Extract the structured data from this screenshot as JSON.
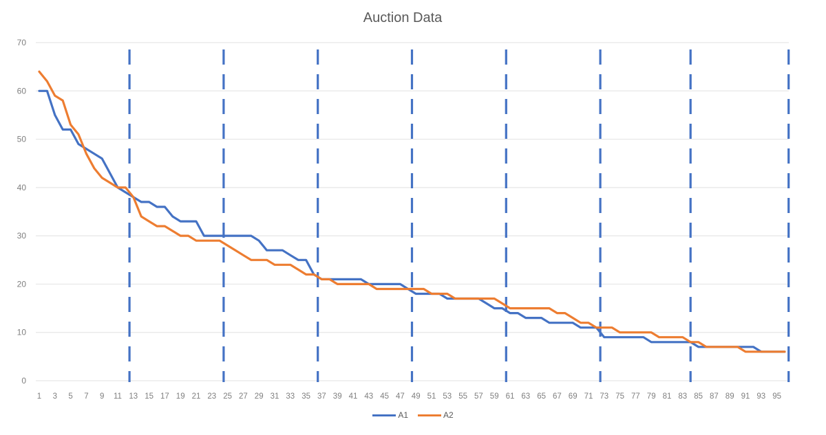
{
  "chart_data": {
    "type": "line",
    "title": "Auction Data",
    "xlabel": "",
    "ylabel": "",
    "ylim": [
      0,
      70
    ],
    "yticks": [
      0,
      10,
      20,
      30,
      40,
      50,
      60,
      70
    ],
    "x": [
      1,
      2,
      3,
      4,
      5,
      6,
      7,
      8,
      9,
      10,
      11,
      12,
      13,
      14,
      15,
      16,
      17,
      18,
      19,
      20,
      21,
      22,
      23,
      24,
      25,
      26,
      27,
      28,
      29,
      30,
      31,
      32,
      33,
      34,
      35,
      36,
      37,
      38,
      39,
      40,
      41,
      42,
      43,
      44,
      45,
      46,
      47,
      48,
      49,
      50,
      51,
      52,
      53,
      54,
      55,
      56,
      57,
      58,
      59,
      60,
      61,
      62,
      63,
      64,
      65,
      66,
      67,
      68,
      69,
      70,
      71,
      72,
      73,
      74,
      75,
      76,
      77,
      78,
      79,
      80,
      81,
      82,
      83,
      84,
      85,
      86,
      87,
      88,
      89,
      90,
      91,
      92,
      93,
      94,
      95,
      96
    ],
    "xtick_labels": [
      "1",
      "3",
      "5",
      "7",
      "9",
      "11",
      "13",
      "15",
      "17",
      "19",
      "21",
      "23",
      "25",
      "27",
      "29",
      "31",
      "33",
      "35",
      "37",
      "39",
      "41",
      "43",
      "45",
      "47",
      "49",
      "51",
      "53",
      "55",
      "57",
      "59",
      "61",
      "63",
      "65",
      "67",
      "69",
      "71",
      "73",
      "75",
      "77",
      "79",
      "81",
      "83",
      "85",
      "87",
      "89",
      "91",
      "93",
      "95"
    ],
    "grid": true,
    "legend_position": "bottom",
    "series": [
      {
        "name": "A1",
        "color": "#4472c4",
        "values": [
          60,
          60,
          55,
          52,
          52,
          49,
          48,
          47,
          46,
          43,
          40,
          39,
          38,
          37,
          37,
          36,
          36,
          34,
          33,
          33,
          33,
          30,
          30,
          30,
          30,
          30,
          30,
          30,
          29,
          27,
          27,
          27,
          26,
          25,
          25,
          22,
          21,
          21,
          21,
          21,
          21,
          21,
          20,
          20,
          20,
          20,
          20,
          19,
          18,
          18,
          18,
          18,
          17,
          17,
          17,
          17,
          17,
          16,
          15,
          15,
          14,
          14,
          13,
          13,
          13,
          12,
          12,
          12,
          12,
          11,
          11,
          11,
          9,
          9,
          9,
          9,
          9,
          9,
          8,
          8,
          8,
          8,
          8,
          8,
          7,
          7,
          7,
          7,
          7,
          7,
          7,
          7,
          6,
          6,
          6,
          6
        ]
      },
      {
        "name": "A2",
        "color": "#ed7d31",
        "values": [
          64,
          62,
          59,
          58,
          53,
          51,
          47,
          44,
          42,
          41,
          40,
          40,
          38,
          34,
          33,
          32,
          32,
          31,
          30,
          30,
          29,
          29,
          29,
          29,
          28,
          27,
          26,
          25,
          25,
          25,
          24,
          24,
          24,
          23,
          22,
          22,
          21,
          21,
          20,
          20,
          20,
          20,
          20,
          19,
          19,
          19,
          19,
          19,
          19,
          19,
          18,
          18,
          18,
          17,
          17,
          17,
          17,
          17,
          17,
          16,
          15,
          15,
          15,
          15,
          15,
          15,
          14,
          14,
          13,
          12,
          12,
          11,
          11,
          11,
          10,
          10,
          10,
          10,
          10,
          9,
          9,
          9,
          9,
          8,
          8,
          7,
          7,
          7,
          7,
          7,
          6,
          6,
          6,
          6,
          6,
          6
        ]
      }
    ],
    "vertical_markers": {
      "style": "dashed",
      "color": "#4472c4",
      "positions": [
        12.5,
        24.5,
        36.5,
        48.5,
        60.5,
        72.5,
        84,
        96.5
      ]
    }
  }
}
